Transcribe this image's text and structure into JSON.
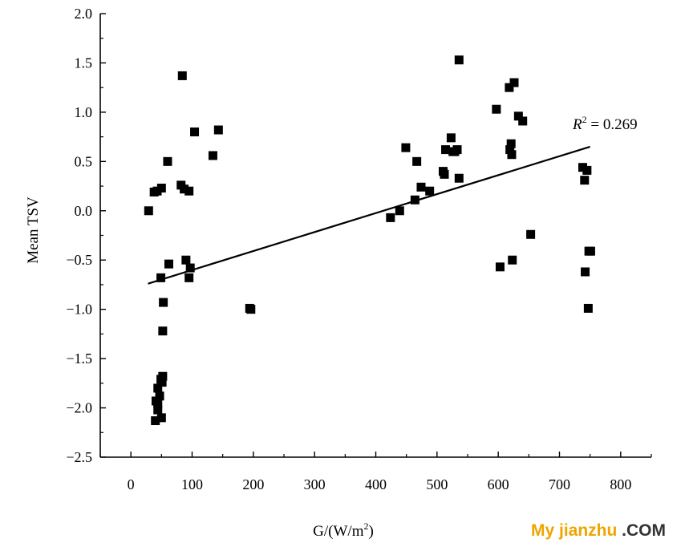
{
  "chart_data": {
    "type": "scatter",
    "xlabel": "G/(W/m",
    "xlabel_sup": "2",
    "xlabel_end": ")",
    "ylabel": "Mean TSV",
    "xlim": [
      -50,
      850
    ],
    "ylim": [
      -2.5,
      2.0
    ],
    "x_ticks": [
      0,
      100,
      200,
      300,
      400,
      500,
      600,
      700,
      800
    ],
    "y_ticks": [
      -2.5,
      -2.0,
      -1.5,
      -1.0,
      -0.5,
      0.0,
      0.5,
      1.0,
      1.5,
      2.0
    ],
    "y_tick_labels": [
      "−2.5",
      "−2.0",
      "−1.5",
      "−1.0",
      "−0.5",
      "0.0",
      "0.5",
      "1.0",
      "1.5",
      "2.0"
    ],
    "x_tick_labels": [
      "0",
      "100",
      "200",
      "300",
      "400",
      "500",
      "600",
      "700",
      "800"
    ],
    "grid": false,
    "series": [
      {
        "marker": "square",
        "color": "#000000",
        "points": [
          [
            29,
            0.0
          ],
          [
            38,
            0.19
          ],
          [
            43,
            0.2
          ],
          [
            50,
            0.23
          ],
          [
            60,
            0.5
          ],
          [
            62,
            -0.54
          ],
          [
            82,
            0.26
          ],
          [
            84,
            1.37
          ],
          [
            87,
            0.22
          ],
          [
            90,
            -0.5
          ],
          [
            95,
            0.2
          ],
          [
            95,
            -0.68
          ],
          [
            97,
            -0.58
          ],
          [
            104,
            0.8
          ],
          [
            134,
            0.56
          ],
          [
            143,
            0.82
          ],
          [
            194,
            -0.99
          ],
          [
            196,
            -1.0
          ],
          [
            49,
            -0.68
          ],
          [
            53,
            -0.93
          ],
          [
            52,
            -1.22
          ],
          [
            52,
            -1.68
          ],
          [
            49,
            -1.71
          ],
          [
            51,
            -1.74
          ],
          [
            44,
            -1.8
          ],
          [
            47,
            -1.88
          ],
          [
            41,
            -1.93
          ],
          [
            44,
            -1.96
          ],
          [
            44,
            -2.02
          ],
          [
            50,
            -2.1
          ],
          [
            40,
            -2.13
          ],
          [
            424,
            -0.07
          ],
          [
            439,
            0.0
          ],
          [
            449,
            0.64
          ],
          [
            464,
            0.11
          ],
          [
            467,
            0.5
          ],
          [
            474,
            0.24
          ],
          [
            488,
            0.2
          ],
          [
            510,
            0.4
          ],
          [
            512,
            0.37
          ],
          [
            514,
            0.62
          ],
          [
            523,
            0.74
          ],
          [
            526,
            0.6
          ],
          [
            529,
            0.6
          ],
          [
            533,
            0.62
          ],
          [
            536,
            0.33
          ],
          [
            536,
            1.53
          ],
          [
            597,
            1.03
          ],
          [
            603,
            -0.57
          ],
          [
            618,
            1.25
          ],
          [
            619,
            0.62
          ],
          [
            621,
            0.68
          ],
          [
            622,
            0.57
          ],
          [
            623,
            -0.5
          ],
          [
            626,
            1.3
          ],
          [
            633,
            0.96
          ],
          [
            640,
            0.91
          ],
          [
            653,
            -0.24
          ],
          [
            738,
            0.44
          ],
          [
            741,
            0.31
          ],
          [
            742,
            -0.62
          ],
          [
            745,
            0.41
          ],
          [
            747,
            -0.99
          ],
          [
            748,
            -0.41
          ],
          [
            751,
            -0.41
          ]
        ]
      }
    ],
    "trendline": {
      "type": "linear",
      "x": [
        28,
        750
      ],
      "y": [
        -0.74,
        0.65
      ]
    },
    "annotation": {
      "text_italic": "R",
      "sup": "2",
      "text_rest": " = 0.269"
    }
  },
  "watermark": {
    "part1": "My jianzhu",
    "part2": " .COM",
    "color": "#f0a400"
  }
}
